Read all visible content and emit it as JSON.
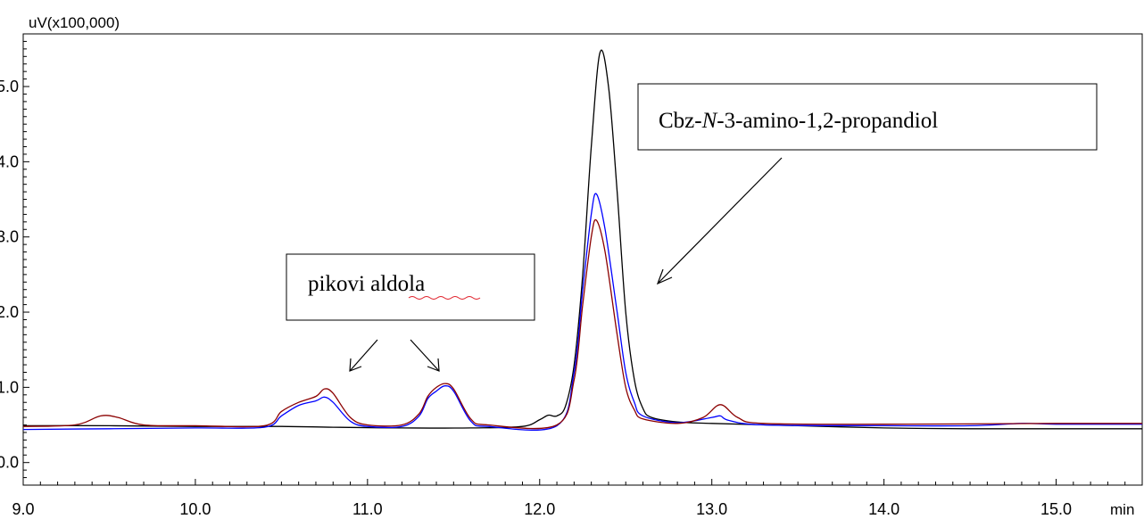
{
  "chart_data": {
    "type": "line",
    "ylabel": "uV(x100,000)",
    "xlabel": "min",
    "xlim": [
      9.0,
      15.5
    ],
    "ylim": [
      -0.3,
      5.7
    ],
    "x_ticks": [
      9.0,
      10.0,
      11.0,
      12.0,
      13.0,
      14.0,
      15.0
    ],
    "x_tick_labels": [
      "9.0",
      "10.0",
      "11.0",
      "12.0",
      "13.0",
      "14.0",
      "15.0"
    ],
    "y_ticks": [
      0.0,
      1.0,
      2.0,
      3.0,
      4.0,
      5.0
    ],
    "y_tick_labels": [
      "0.0",
      "1.0",
      "2.0",
      "3.0",
      "4.0",
      "5.0"
    ],
    "grid": false,
    "series": [
      {
        "color": "#000000",
        "points": [
          [
            9.0,
            0.49
          ],
          [
            9.5,
            0.49
          ],
          [
            10.0,
            0.48
          ],
          [
            10.5,
            0.48
          ],
          [
            10.8,
            0.47
          ],
          [
            11.2,
            0.46
          ],
          [
            11.6,
            0.46
          ],
          [
            11.9,
            0.48
          ],
          [
            12.0,
            0.57
          ],
          [
            12.05,
            0.63
          ],
          [
            12.1,
            0.62
          ],
          [
            12.15,
            0.75
          ],
          [
            12.2,
            1.3
          ],
          [
            12.25,
            2.5
          ],
          [
            12.3,
            4.2
          ],
          [
            12.35,
            5.45
          ],
          [
            12.4,
            5.0
          ],
          [
            12.45,
            3.6
          ],
          [
            12.5,
            2.0
          ],
          [
            12.55,
            1.1
          ],
          [
            12.6,
            0.72
          ],
          [
            12.65,
            0.6
          ],
          [
            12.8,
            0.54
          ],
          [
            13.0,
            0.52
          ],
          [
            13.5,
            0.49
          ],
          [
            14.0,
            0.46
          ],
          [
            14.5,
            0.45
          ],
          [
            15.0,
            0.45
          ],
          [
            15.5,
            0.45
          ]
        ]
      },
      {
        "color": "#0000ff",
        "points": [
          [
            9.0,
            0.44
          ],
          [
            9.5,
            0.45
          ],
          [
            10.0,
            0.46
          ],
          [
            10.4,
            0.47
          ],
          [
            10.5,
            0.62
          ],
          [
            10.6,
            0.76
          ],
          [
            10.7,
            0.82
          ],
          [
            10.75,
            0.87
          ],
          [
            10.8,
            0.8
          ],
          [
            10.9,
            0.55
          ],
          [
            11.0,
            0.48
          ],
          [
            11.2,
            0.48
          ],
          [
            11.3,
            0.62
          ],
          [
            11.35,
            0.85
          ],
          [
            11.4,
            0.95
          ],
          [
            11.45,
            1.02
          ],
          [
            11.5,
            0.95
          ],
          [
            11.6,
            0.55
          ],
          [
            11.7,
            0.48
          ],
          [
            12.1,
            0.49
          ],
          [
            12.2,
            1.2
          ],
          [
            12.25,
            2.3
          ],
          [
            12.3,
            3.3
          ],
          [
            12.33,
            3.57
          ],
          [
            12.38,
            3.1
          ],
          [
            12.45,
            2.0
          ],
          [
            12.5,
            1.2
          ],
          [
            12.55,
            0.8
          ],
          [
            12.6,
            0.62
          ],
          [
            12.8,
            0.53
          ],
          [
            13.0,
            0.6
          ],
          [
            13.05,
            0.62
          ],
          [
            13.1,
            0.56
          ],
          [
            13.3,
            0.5
          ],
          [
            14.0,
            0.49
          ],
          [
            14.5,
            0.49
          ],
          [
            14.8,
            0.52
          ],
          [
            15.0,
            0.51
          ],
          [
            15.5,
            0.51
          ]
        ]
      },
      {
        "color": "#8b0000",
        "points": [
          [
            9.0,
            0.48
          ],
          [
            9.3,
            0.5
          ],
          [
            9.45,
            0.62
          ],
          [
            9.55,
            0.6
          ],
          [
            9.7,
            0.5
          ],
          [
            10.0,
            0.49
          ],
          [
            10.4,
            0.49
          ],
          [
            10.5,
            0.68
          ],
          [
            10.6,
            0.8
          ],
          [
            10.7,
            0.88
          ],
          [
            10.75,
            0.98
          ],
          [
            10.8,
            0.92
          ],
          [
            10.9,
            0.6
          ],
          [
            11.0,
            0.5
          ],
          [
            11.2,
            0.5
          ],
          [
            11.3,
            0.65
          ],
          [
            11.35,
            0.88
          ],
          [
            11.4,
            1.0
          ],
          [
            11.45,
            1.05
          ],
          [
            11.5,
            0.98
          ],
          [
            11.6,
            0.58
          ],
          [
            11.7,
            0.5
          ],
          [
            12.1,
            0.5
          ],
          [
            12.2,
            1.1
          ],
          [
            12.25,
            2.1
          ],
          [
            12.3,
            3.0
          ],
          [
            12.33,
            3.22
          ],
          [
            12.38,
            2.8
          ],
          [
            12.45,
            1.7
          ],
          [
            12.5,
            1.0
          ],
          [
            12.55,
            0.7
          ],
          [
            12.6,
            0.58
          ],
          [
            12.8,
            0.52
          ],
          [
            12.95,
            0.6
          ],
          [
            13.05,
            0.77
          ],
          [
            13.15,
            0.6
          ],
          [
            13.3,
            0.52
          ],
          [
            14.0,
            0.51
          ],
          [
            15.0,
            0.52
          ],
          [
            15.5,
            0.52
          ]
        ]
      }
    ],
    "annotations": [
      {
        "text_before": "Cbz-",
        "text_italic": "N",
        "text_after": "-3-amino-1,2-propandiol"
      },
      {
        "text": "pikovi aldola"
      }
    ]
  }
}
